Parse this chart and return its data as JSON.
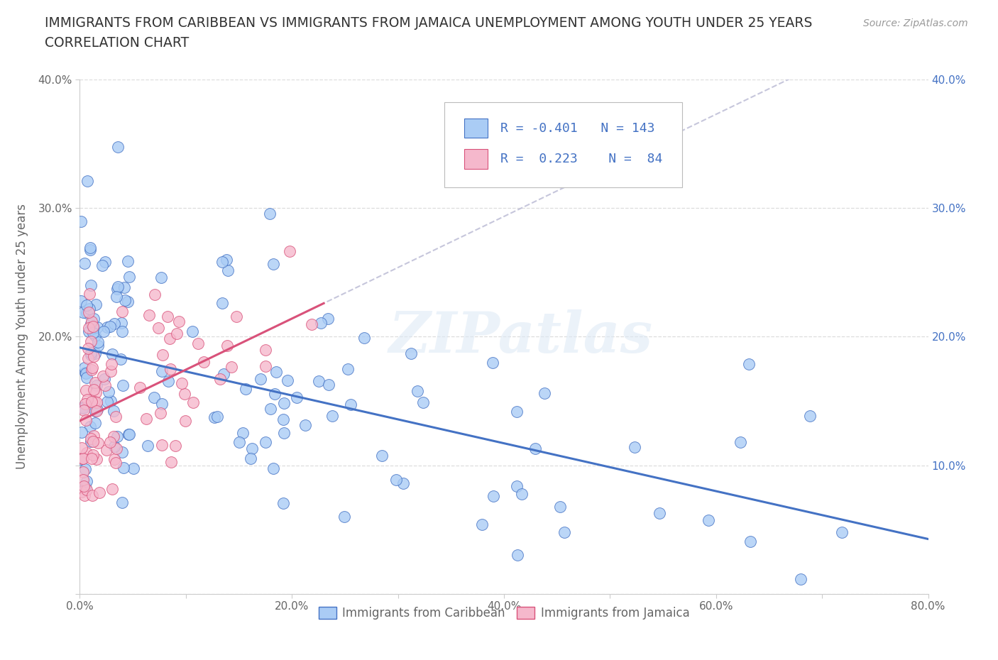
{
  "title_line1": "IMMIGRANTS FROM CARIBBEAN VS IMMIGRANTS FROM JAMAICA UNEMPLOYMENT AMONG YOUTH UNDER 25 YEARS",
  "title_line2": "CORRELATION CHART",
  "source": "Source: ZipAtlas.com",
  "ylabel": "Unemployment Among Youth under 25 years",
  "watermark": "ZIPatlas",
  "legend_label1": "Immigrants from Caribbean",
  "legend_label2": "Immigrants from Jamaica",
  "R1": -0.401,
  "N1": 143,
  "R2": 0.223,
  "N2": 84,
  "color1": "#aaccf5",
  "color2": "#f5b8cc",
  "line_color1": "#4472c4",
  "line_color2": "#d9527a",
  "dashed_color": "#c0c0d8",
  "xlim": [
    0.0,
    0.8
  ],
  "ylim": [
    0.0,
    0.4
  ],
  "xticks": [
    0.0,
    0.1,
    0.2,
    0.3,
    0.4,
    0.5,
    0.6,
    0.7,
    0.8
  ],
  "yticks": [
    0.0,
    0.1,
    0.2,
    0.3,
    0.4
  ],
  "xtick_labels": [
    "0.0%",
    "",
    "20.0%",
    "",
    "40.0%",
    "",
    "60.0%",
    "",
    "80.0%"
  ],
  "ytick_labels_left": [
    "",
    "",
    "20.0%",
    "30.0%",
    "40.0%"
  ],
  "ytick_labels_right": [
    "",
    "10.0%",
    "20.0%",
    "30.0%",
    "40.0%"
  ],
  "title_color": "#333333",
  "axis_color": "#666666",
  "grid_color": "#dddddd",
  "background_color": "#ffffff",
  "trend1_y0": 0.179,
  "trend1_y1": 0.07,
  "trend2_y0": 0.13,
  "trend2_slope": 0.48
}
